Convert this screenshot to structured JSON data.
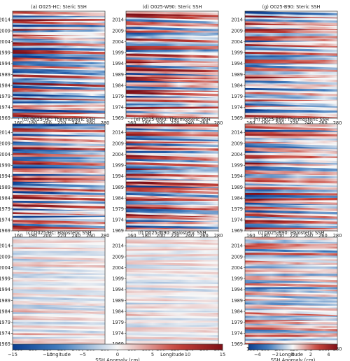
{
  "chart_data": {
    "type": "heatmap",
    "colormap": "diverging blue-white-red",
    "colors": {
      "negative": "#0b3d8f",
      "zero": "#f7f7f7",
      "positive": "#7f0f17"
    },
    "x_ticks": [
      "160",
      "180",
      "200",
      "220",
      "240",
      "260",
      "280"
    ],
    "y_ticks": [
      "1969",
      "1974",
      "1979",
      "1984",
      "1989",
      "1994",
      "1999",
      "2004",
      "2009",
      "2014"
    ],
    "xlabel": "Longitude",
    "xlim": [
      152,
      280
    ],
    "ylim": [
      1969,
      2018
    ],
    "panels": [
      {
        "id": "a",
        "title": "(a) O025-HC: Steric SSH",
        "component": "steric",
        "colorbar": "left",
        "strength": 1.0
      },
      {
        "id": "d",
        "title": "(d) O025-W90: Steric SSH",
        "component": "steric",
        "colorbar": "left",
        "strength": 1.0
      },
      {
        "id": "g",
        "title": "(g) O025-B90: Steric SSH",
        "component": "steric",
        "colorbar": "right",
        "strength": 0.9
      },
      {
        "id": "b",
        "title": "(b) O025-HC: Thermosteric SSH",
        "component": "thermosteric",
        "colorbar": "left",
        "strength": 1.0
      },
      {
        "id": "e",
        "title": "(e) O025-W90: Thermosteric SSH",
        "component": "thermosteric",
        "colorbar": "left",
        "strength": 1.0
      },
      {
        "id": "h",
        "title": "(h) O025-B90: Thermosteric SSH",
        "component": "thermosteric",
        "colorbar": "right",
        "strength": 0.9
      },
      {
        "id": "c",
        "title": "(c) O025-HC: Halosteric SSH",
        "component": "halosteric",
        "colorbar": "left",
        "strength": 0.35
      },
      {
        "id": "f",
        "title": "(f) O025-W90: Halosteric SSH",
        "component": "halosteric",
        "colorbar": "left",
        "strength": 0.3
      },
      {
        "id": "i",
        "title": "(i) O025-B90: Halosteric SSH",
        "component": "halosteric",
        "colorbar": "right",
        "strength": 0.85
      }
    ],
    "colorbars": [
      {
        "id": "left",
        "label": "SSH Anomaly (cm)",
        "range": [
          -15,
          15
        ],
        "ticks": [
          "−15",
          "−10",
          "−5",
          "0",
          "5",
          "10",
          "15"
        ]
      },
      {
        "id": "right",
        "label": "SSH Anomaly (cm)",
        "range": [
          -5,
          5
        ],
        "ticks": [
          "−4",
          "−2",
          "0",
          "2",
          "4"
        ]
      }
    ]
  }
}
